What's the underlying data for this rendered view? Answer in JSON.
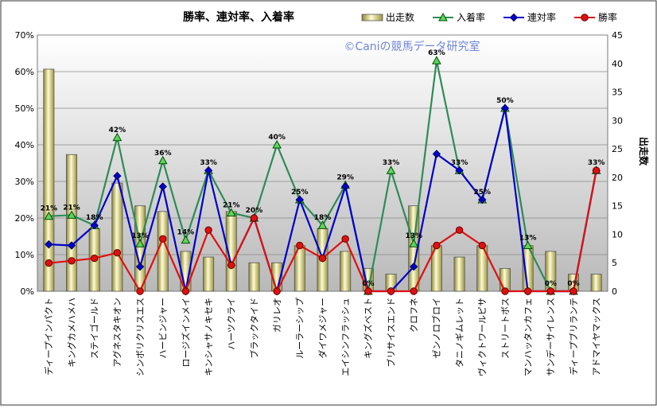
{
  "chart_data": {
    "type": "bar",
    "title": "勝率、連対率、入着率",
    "watermark": "©Caniの競馬データ研究室",
    "y2label": "出走数",
    "left_axis": {
      "ticks": [
        "0%",
        "10%",
        "20%",
        "30%",
        "40%",
        "50%",
        "60%",
        "70%"
      ],
      "range": [
        0,
        70
      ]
    },
    "right_axis": {
      "ticks": [
        "0",
        "5",
        "10",
        "15",
        "20",
        "25",
        "30",
        "35",
        "40",
        "45"
      ],
      "range": [
        0,
        45
      ]
    },
    "legend_position": "top-right",
    "categories": [
      "ディープインパクト",
      "キングカメハメハ",
      "ステイゴールド",
      "アグネスタキオン",
      "シンボリクリスエス",
      "ハービンジャー",
      "ロージズインメイ",
      "キンシャサノキセキ",
      "ハーツクライ",
      "ブラックタイド",
      "ガリレオ",
      "ルーラーシップ",
      "ダイワメジャー",
      "エイシンフラッシュ",
      "キングズベスト",
      "ブリサイスエンド",
      "クロフネ",
      "ゼンノロブロイ",
      "タニノギムレット",
      "ヴィクトワールピサ",
      "ストリートボス",
      "マンハッタンカフェ",
      "サンデーサイレンス",
      "ディープブリランテ",
      "アドマイヤマックス"
    ],
    "series": [
      {
        "name": "出走数",
        "type": "bar",
        "axis": "right",
        "color": "#e6e08a",
        "values": [
          39,
          24,
          11,
          19,
          15,
          14,
          7,
          6,
          14,
          5,
          5,
          8,
          11,
          7,
          4,
          3,
          15,
          8,
          6,
          8,
          4,
          8,
          7,
          3,
          3
        ]
      },
      {
        "name": "入着率",
        "type": "line",
        "axis": "left",
        "color": "#2e8b57",
        "marker": "triangle",
        "values": [
          20.5,
          20.8,
          18,
          42,
          13,
          35.7,
          14,
          33,
          21.4,
          20,
          40,
          25,
          18,
          29,
          0,
          33,
          13,
          63,
          33,
          25,
          50,
          12.5,
          0,
          0,
          33
        ]
      },
      {
        "name": "連対率",
        "type": "line",
        "axis": "left",
        "color": "#0000cc",
        "marker": "diamond",
        "values": [
          12.8,
          12.5,
          18,
          31.5,
          6.7,
          28.6,
          0,
          33,
          7.1,
          20,
          0,
          25,
          9,
          28.6,
          0,
          0,
          6.7,
          37.5,
          33,
          25,
          50,
          0,
          0,
          0,
          33
        ]
      },
      {
        "name": "勝率",
        "type": "line",
        "axis": "left",
        "color": "#e01010",
        "marker": "circle",
        "values": [
          7.7,
          8.3,
          9,
          10.5,
          0,
          14.3,
          0,
          16.7,
          7.1,
          20,
          0,
          12.5,
          9,
          14.3,
          0,
          0,
          0,
          12.5,
          16.7,
          12.5,
          0,
          0,
          0,
          0,
          33
        ]
      }
    ],
    "data_labels": [
      "21%",
      "21%",
      "18%",
      "42%",
      "13%",
      "36%",
      "14%",
      "33%",
      "21%",
      "20%",
      "40%",
      "25%",
      "18%",
      "29%",
      "0%",
      "33%",
      "13%",
      "63%",
      "33%",
      "25%",
      "50%",
      "13%",
      "0%",
      "0%",
      "33%"
    ]
  }
}
